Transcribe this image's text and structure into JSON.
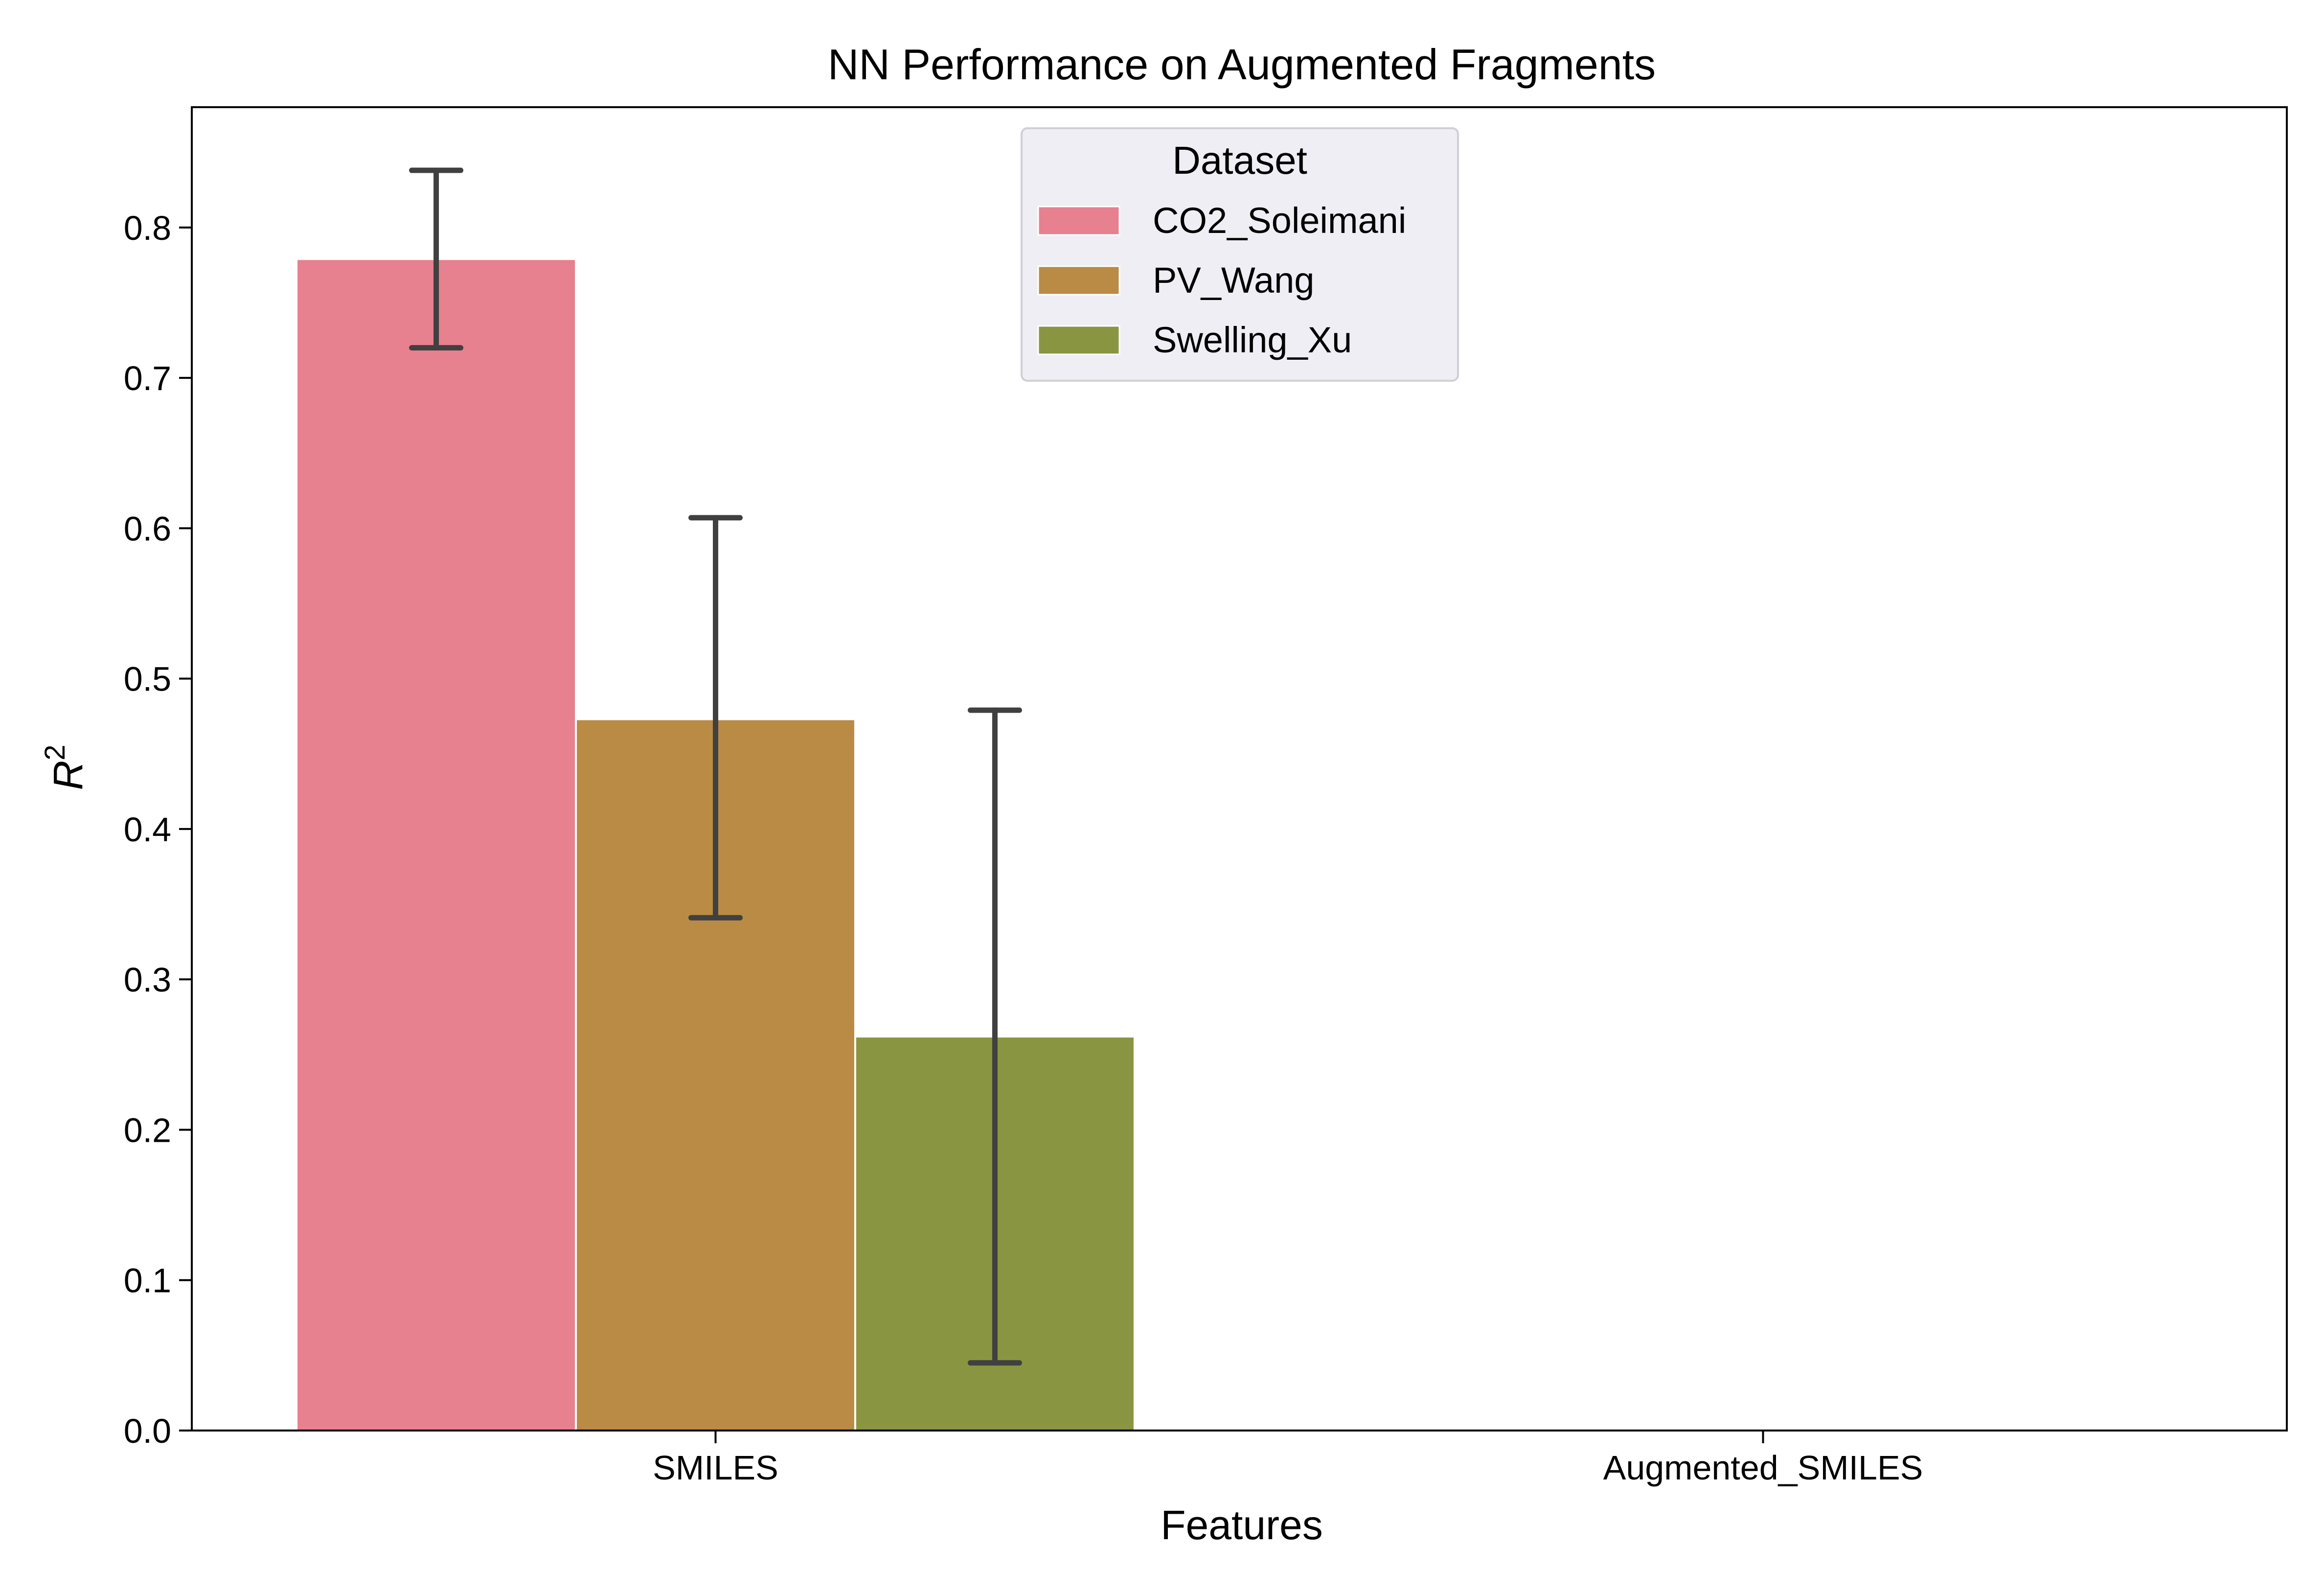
{
  "chart_data": {
    "type": "bar",
    "title": "NN Performance on Augmented Fragments",
    "xlabel": "Features",
    "ylabel": "R",
    "ylabel_superscript": "2",
    "categories": [
      "SMILES",
      "Augmented_SMILES"
    ],
    "ylim": [
      0,
      0.88
    ],
    "yticks": [
      0.0,
      0.1,
      0.2,
      0.3,
      0.4,
      0.5,
      0.6,
      0.7,
      0.8
    ],
    "ytick_labels": [
      "0.0",
      "0.1",
      "0.2",
      "0.3",
      "0.4",
      "0.5",
      "0.6",
      "0.7",
      "0.8"
    ],
    "grid": false,
    "legend": {
      "title": "Dataset",
      "placement": "upper-center"
    },
    "series": [
      {
        "name": "CO2_Soleimani",
        "color": "#e7808f",
        "values": [
          0.779,
          null
        ],
        "error_low": [
          0.72,
          null
        ],
        "error_high": [
          0.838,
          null
        ]
      },
      {
        "name": "PV_Wang",
        "color": "#b98b45",
        "values": [
          0.473,
          null
        ],
        "error_low": [
          0.341,
          null
        ],
        "error_high": [
          0.607,
          null
        ]
      },
      {
        "name": "Swelling_Xu",
        "color": "#8a9542",
        "values": [
          0.262,
          null
        ],
        "error_low": [
          0.045,
          null
        ],
        "error_high": [
          0.479,
          null
        ]
      }
    ]
  }
}
